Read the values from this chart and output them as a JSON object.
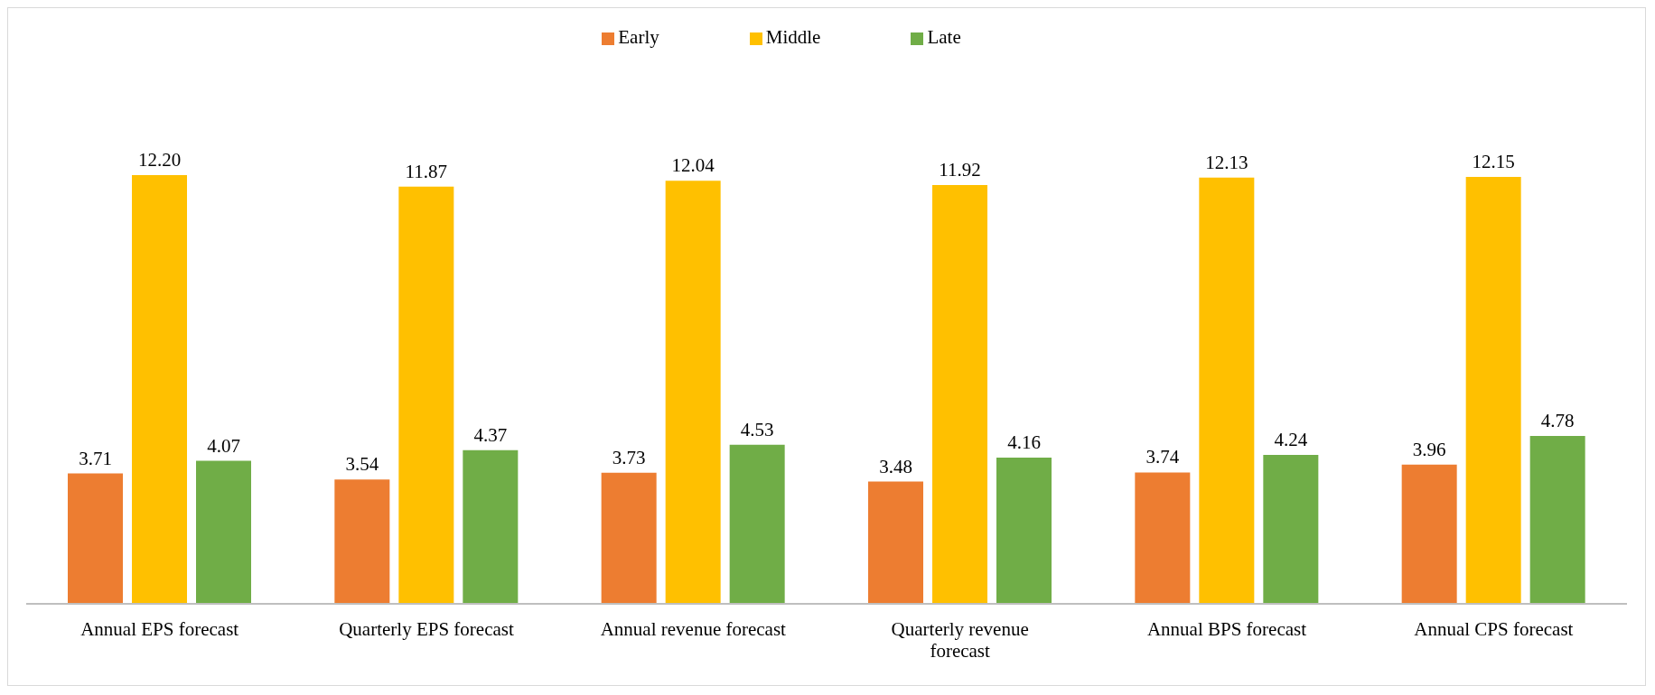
{
  "chart_data": {
    "type": "bar",
    "categories": [
      "Annual EPS forecast",
      "Quarterly EPS forecast",
      "Annual revenue forecast",
      "Quarterly revenue forecast",
      "Annual BPS forecast",
      "Annual CPS forecast"
    ],
    "series": [
      {
        "name": "Early",
        "color": "#ed7d31",
        "values": [
          3.71,
          3.54,
          3.73,
          3.48,
          3.74,
          3.96
        ],
        "value_labels": [
          "3.71",
          "3.54",
          "3.73",
          "3.48",
          "3.74",
          "3.96"
        ]
      },
      {
        "name": "Middle",
        "color": "#ffc000",
        "values": [
          12.2,
          11.87,
          12.04,
          11.92,
          12.13,
          12.15
        ],
        "value_labels": [
          "12.20",
          "11.87",
          "12.04",
          "11.92",
          "12.13",
          "12.15"
        ]
      },
      {
        "name": "Late",
        "color": "#70ad47",
        "values": [
          4.07,
          4.37,
          4.53,
          4.16,
          4.24,
          4.78
        ],
        "value_labels": [
          "4.07",
          "4.37",
          "4.53",
          "4.16",
          "4.24",
          "4.78"
        ]
      }
    ],
    "grid": false,
    "legend": "top"
  }
}
